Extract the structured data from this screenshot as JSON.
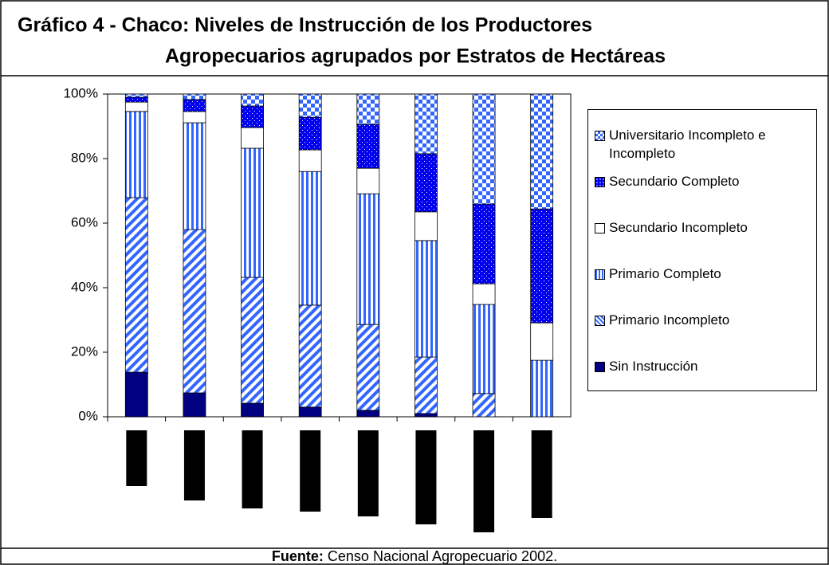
{
  "chart_data": {
    "type": "stacked_bar",
    "title": [
      "Gráfico 4 - Chaco: Niveles de Instrucción de los Productores",
      "Agropecuarios agrupados por Estratos de Hectáreas"
    ],
    "source_label": "Fuente:",
    "source": "Censo Nacional Agropecuario 2002.",
    "categories": [
      null,
      null,
      null,
      null,
      null,
      null,
      null,
      null
    ],
    "ylim": [
      0,
      100
    ],
    "yticks": [
      {
        "value": 0,
        "label": "0%"
      },
      {
        "value": 20,
        "label": "20%"
      },
      {
        "value": 40,
        "label": "40%"
      },
      {
        "value": 60,
        "label": "60%"
      },
      {
        "value": 80,
        "label": "80%"
      },
      {
        "value": 100,
        "label": "100%"
      }
    ],
    "legend": "right",
    "series": [
      {
        "name": "Sin Instrucción",
        "color": "#000080",
        "pattern": "solid",
        "values": [
          13.8,
          7.4,
          4.2,
          3.0,
          2.0,
          1.0,
          0,
          0
        ]
      },
      {
        "name": "Primario Incompleto",
        "color": "#3366ff",
        "pattern": "diagonal",
        "values": [
          54.1,
          50.6,
          39.0,
          31.6,
          26.6,
          17.5,
          7.2,
          0
        ]
      },
      {
        "name": "Primario Completo",
        "color": "#3366ff",
        "pattern": "vertical",
        "values": [
          26.7,
          33.1,
          40.0,
          41.4,
          40.5,
          36.1,
          27.6,
          17.5
        ]
      },
      {
        "name": "Secundario Incompleto",
        "color": "#ffffff",
        "pattern": "solid",
        "values": [
          2.9,
          3.5,
          6.4,
          6.7,
          7.9,
          8.9,
          6.4,
          11.6
        ]
      },
      {
        "name": "Secundario Completo",
        "color": "#0000ee",
        "pattern": "dots",
        "values": [
          1.5,
          3.7,
          6.7,
          10.1,
          13.6,
          18.0,
          24.7,
          35.3
        ]
      },
      {
        "name": "Universitario Incompleto e Incompleto",
        "color": "#3366ff",
        "pattern": "checker",
        "values": [
          1.0,
          1.7,
          3.7,
          7.2,
          9.4,
          18.5,
          34.1,
          35.6
        ]
      }
    ]
  }
}
